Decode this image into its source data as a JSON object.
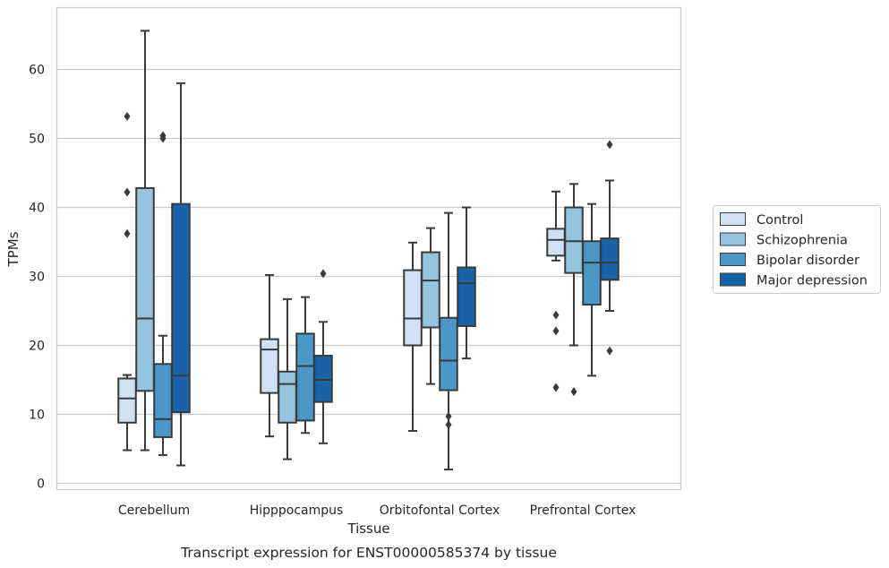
{
  "chart_data": {
    "type": "box",
    "caption": "Transcript expression for ENST00000585374 by tissue",
    "xlabel": "Tissue",
    "ylabel": "TPMs",
    "ylim": [
      -1,
      69
    ],
    "yticks": [
      0,
      10,
      20,
      30,
      40,
      50,
      60
    ],
    "grid": true,
    "legend_position": "right",
    "categories": [
      "Cerebellum",
      "Hipppocampus",
      "Orbitofontal Cortex",
      "Prefrontal Cortex"
    ],
    "series": [
      {
        "name": "Control",
        "color": "#d0e1f2",
        "boxes": [
          {
            "whislo": 4.8,
            "q1": 8.8,
            "med": 12.3,
            "q3": 15.2,
            "whishi": 15.7,
            "fliers": [
              53.2,
              42.2,
              36.2
            ]
          },
          {
            "whislo": 6.8,
            "q1": 13.1,
            "med": 19.4,
            "q3": 20.9,
            "whishi": 30.2,
            "fliers": []
          },
          {
            "whislo": 7.6,
            "q1": 20.0,
            "med": 23.9,
            "q3": 30.9,
            "whishi": 34.9,
            "fliers": []
          },
          {
            "whislo": 32.3,
            "q1": 33.0,
            "med": 35.3,
            "q3": 36.9,
            "whishi": 42.3,
            "fliers": [
              24.4,
              22.1,
              13.9
            ]
          }
        ]
      },
      {
        "name": "Schizophrenia",
        "color": "#94c4df",
        "boxes": [
          {
            "whislo": 4.8,
            "q1": 13.4,
            "med": 23.9,
            "q3": 42.8,
            "whishi": 65.6,
            "fliers": []
          },
          {
            "whislo": 3.5,
            "q1": 8.8,
            "med": 14.4,
            "q3": 16.2,
            "whishi": 26.7,
            "fliers": []
          },
          {
            "whislo": 14.4,
            "q1": 22.6,
            "med": 29.4,
            "q3": 33.5,
            "whishi": 37.0,
            "fliers": []
          },
          {
            "whislo": 20.0,
            "q1": 30.5,
            "med": 35.1,
            "q3": 40.0,
            "whishi": 43.4,
            "fliers": [
              13.3
            ]
          }
        ]
      },
      {
        "name": "Bipolar disorder",
        "color": "#4a98c9",
        "boxes": [
          {
            "whislo": 4.1,
            "q1": 6.7,
            "med": 9.3,
            "q3": 17.3,
            "whishi": 21.4,
            "fliers": [
              50.4,
              50.0
            ]
          },
          {
            "whislo": 7.3,
            "q1": 9.1,
            "med": 17.0,
            "q3": 21.7,
            "whishi": 27.0,
            "fliers": []
          },
          {
            "whislo": 2.0,
            "q1": 13.5,
            "med": 17.8,
            "q3": 24.0,
            "whishi": 39.2,
            "fliers": [
              9.7,
              8.5
            ]
          },
          {
            "whislo": 15.6,
            "q1": 25.9,
            "med": 32.0,
            "q3": 35.1,
            "whishi": 40.5,
            "fliers": []
          }
        ]
      },
      {
        "name": "Major depression",
        "color": "#1764ab",
        "boxes": [
          {
            "whislo": 2.6,
            "q1": 10.3,
            "med": 15.6,
            "q3": 40.5,
            "whishi": 58.0,
            "fliers": []
          },
          {
            "whislo": 5.8,
            "q1": 11.8,
            "med": 15.0,
            "q3": 18.5,
            "whishi": 23.4,
            "fliers": [
              30.4
            ]
          },
          {
            "whislo": 18.1,
            "q1": 22.8,
            "med": 29.0,
            "q3": 31.3,
            "whishi": 40.0,
            "fliers": []
          },
          {
            "whislo": 25.0,
            "q1": 29.5,
            "med": 32.0,
            "q3": 35.5,
            "whishi": 43.9,
            "fliers": [
              49.1,
              19.2
            ]
          }
        ]
      }
    ]
  }
}
